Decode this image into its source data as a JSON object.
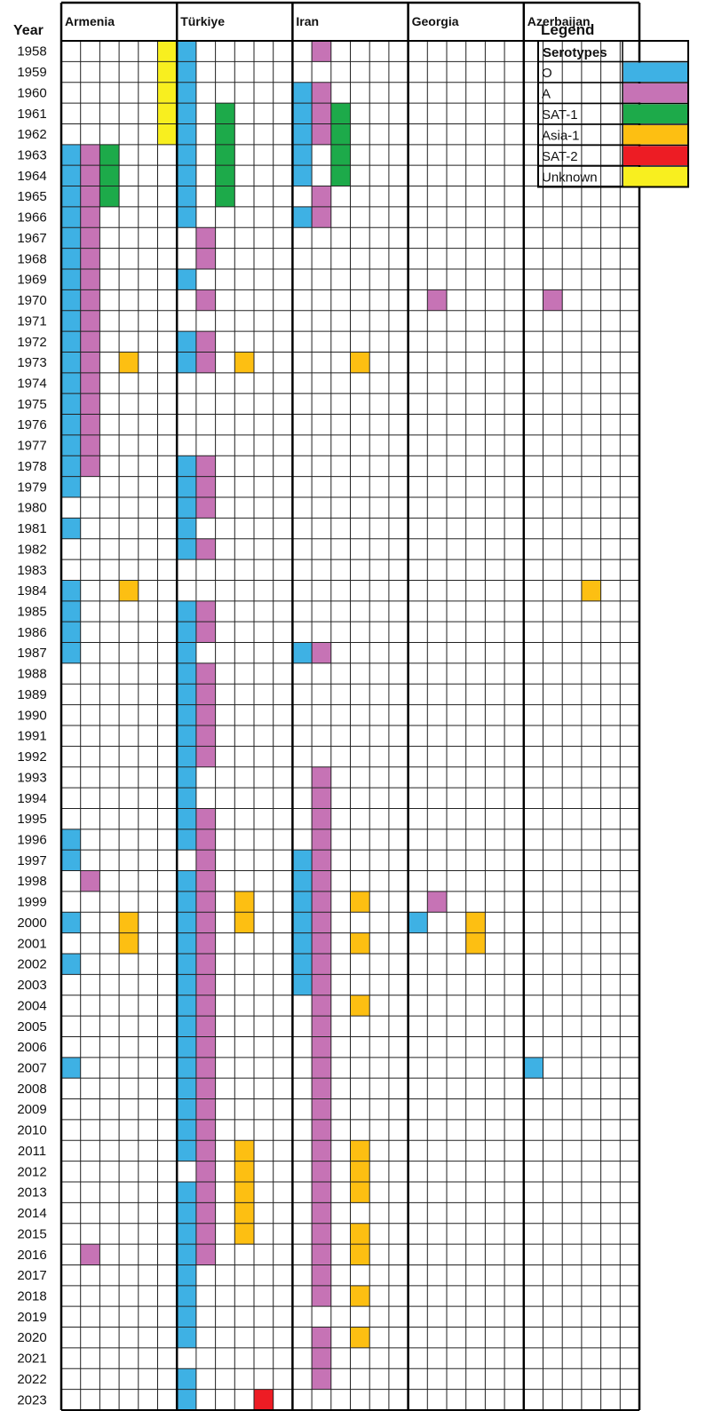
{
  "chart_data": {
    "type": "heatmap",
    "title": "",
    "year_label": "Year",
    "years": [
      1958,
      1959,
      1960,
      1961,
      1962,
      1963,
      1964,
      1965,
      1966,
      1967,
      1968,
      1969,
      1970,
      1971,
      1972,
      1973,
      1974,
      1975,
      1976,
      1977,
      1978,
      1979,
      1980,
      1981,
      1982,
      1983,
      1984,
      1985,
      1986,
      1987,
      1988,
      1989,
      1990,
      1991,
      1992,
      1993,
      1994,
      1995,
      1996,
      1997,
      1998,
      1999,
      2000,
      2001,
      2002,
      2003,
      2004,
      2005,
      2006,
      2007,
      2008,
      2009,
      2010,
      2011,
      2012,
      2013,
      2014,
      2015,
      2016,
      2017,
      2018,
      2019,
      2020,
      2021,
      2022,
      2023
    ],
    "serotype_columns": [
      "O",
      "A",
      "SAT-1",
      "Asia-1",
      "SAT-2",
      "Unknown"
    ],
    "legend": {
      "title": "Legend",
      "header": "Serotypes",
      "items": [
        {
          "name": "O",
          "color": "#3EB1E4"
        },
        {
          "name": "A",
          "color": "#C673B5"
        },
        {
          "name": "SAT-1",
          "color": "#1DAA4A"
        },
        {
          "name": "Asia-1",
          "color": "#FDBF12"
        },
        {
          "name": "SAT-2",
          "color": "#ED1C24"
        },
        {
          "name": "Unknown",
          "color": "#F8EF1F"
        }
      ]
    },
    "countries": [
      {
        "name": "Armenia",
        "outbreaks": {
          "O": [
            1963,
            1964,
            1965,
            1966,
            1967,
            1968,
            1969,
            1970,
            1971,
            1972,
            1973,
            1974,
            1975,
            1976,
            1977,
            1978,
            1979,
            1981,
            1984,
            1985,
            1986,
            1987,
            1996,
            1997,
            2000,
            2002,
            2007
          ],
          "A": [
            1963,
            1964,
            1965,
            1966,
            1967,
            1968,
            1969,
            1970,
            1971,
            1972,
            1973,
            1974,
            1975,
            1976,
            1977,
            1978,
            1998,
            2016
          ],
          "SAT-1": [
            1963,
            1964,
            1965
          ],
          "Asia-1": [
            1973,
            1984,
            2000,
            2001
          ],
          "SAT-2": [],
          "Unknown": [
            1958,
            1959,
            1960,
            1961,
            1962
          ]
        }
      },
      {
        "name": "Türkiye",
        "outbreaks": {
          "O": [
            1958,
            1959,
            1960,
            1961,
            1962,
            1963,
            1964,
            1965,
            1966,
            1969,
            1972,
            1973,
            1978,
            1979,
            1980,
            1981,
            1982,
            1985,
            1986,
            1987,
            1988,
            1989,
            1990,
            1991,
            1992,
            1993,
            1994,
            1995,
            1996,
            1998,
            1999,
            2000,
            2001,
            2002,
            2003,
            2004,
            2005,
            2006,
            2007,
            2008,
            2009,
            2010,
            2011,
            2013,
            2014,
            2015,
            2016,
            2017,
            2018,
            2019,
            2020,
            2022,
            2023
          ],
          "A": [
            1967,
            1968,
            1970,
            1972,
            1973,
            1978,
            1979,
            1980,
            1982,
            1985,
            1986,
            1988,
            1989,
            1990,
            1991,
            1992,
            1995,
            1996,
            1997,
            1998,
            1999,
            2000,
            2001,
            2002,
            2003,
            2004,
            2005,
            2006,
            2007,
            2008,
            2009,
            2010,
            2011,
            2012,
            2013,
            2014,
            2015,
            2016
          ],
          "SAT-1": [
            1961,
            1962,
            1963,
            1964,
            1965
          ],
          "Asia-1": [
            1973,
            1999,
            2000,
            2011,
            2012,
            2013,
            2014,
            2015
          ],
          "SAT-2": [
            2023
          ],
          "Unknown": []
        }
      },
      {
        "name": "Iran",
        "outbreaks": {
          "O": [
            1960,
            1961,
            1962,
            1963,
            1964,
            1966,
            1987,
            1997,
            1998,
            1999,
            2000,
            2001,
            2002,
            2003
          ],
          "A": [
            1958,
            1960,
            1961,
            1962,
            1965,
            1966,
            1987,
            1993,
            1994,
            1995,
            1996,
            1997,
            1998,
            1999,
            2000,
            2001,
            2002,
            2003,
            2004,
            2005,
            2006,
            2007,
            2008,
            2009,
            2010,
            2011,
            2012,
            2013,
            2014,
            2015,
            2016,
            2017,
            2018,
            2020,
            2021,
            2022
          ],
          "SAT-1": [
            1961,
            1962,
            1963,
            1964
          ],
          "Asia-1": [
            1973,
            1999,
            2001,
            2004,
            2011,
            2012,
            2013,
            2015,
            2016,
            2018,
            2020
          ],
          "SAT-2": [],
          "Unknown": []
        }
      },
      {
        "name": "Georgia",
        "outbreaks": {
          "O": [
            2000
          ],
          "A": [
            1970,
            1999
          ],
          "SAT-1": [],
          "Asia-1": [
            2000,
            2001
          ],
          "SAT-2": [],
          "Unknown": []
        }
      },
      {
        "name": "Azerbaijan",
        "outbreaks": {
          "O": [
            2007
          ],
          "A": [
            1970
          ],
          "SAT-1": [],
          "Asia-1": [
            1984
          ],
          "SAT-2": [],
          "Unknown": []
        }
      }
    ]
  }
}
